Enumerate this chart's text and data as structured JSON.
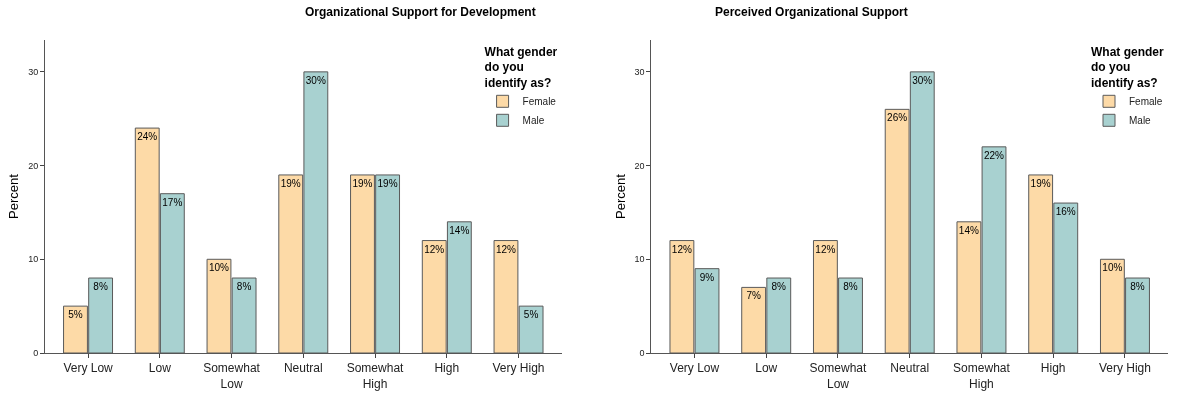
{
  "chart_data": [
    {
      "type": "bar",
      "title": "Organizational Support for Development",
      "ylabel": "Percent",
      "legend_title": "What gender\ndo you\nidentify as?",
      "legend": "top right",
      "categories": [
        "Very Low",
        "Low",
        "Somewhat\nLow",
        "Neutral",
        "Somewhat\nHigh",
        "High",
        "Very High"
      ],
      "ylim": [
        0,
        33.4
      ],
      "yticks": [
        0,
        10,
        20,
        30
      ],
      "series": [
        {
          "name": "Female",
          "color": "#fddaa7",
          "values": [
            5,
            24,
            10,
            19,
            19,
            12,
            12
          ],
          "value_labels": [
            "5%",
            "24%",
            "10%",
            "19%",
            "19%",
            "12%",
            "12%"
          ]
        },
        {
          "name": "Male",
          "color": "#a8d1d0",
          "values": [
            8,
            17,
            8,
            30,
            19,
            14,
            5
          ],
          "value_labels": [
            "8%",
            "17%",
            "8%",
            "30%",
            "19%",
            "14%",
            "5%"
          ]
        }
      ]
    },
    {
      "type": "bar",
      "title": "Perceived Organizational Support",
      "ylabel": "Percent",
      "legend_title": "What gender\ndo you\nidentify as?",
      "legend": "top right",
      "categories": [
        "Very Low",
        "Low",
        "Somewhat\nLow",
        "Neutral",
        "Somewhat\nHigh",
        "High",
        "Very High"
      ],
      "ylim": [
        0,
        33.4
      ],
      "yticks": [
        0,
        10,
        20,
        30
      ],
      "series": [
        {
          "name": "Female",
          "color": "#fddaa7",
          "values": [
            12,
            7,
            12,
            26,
            14,
            19,
            10
          ],
          "value_labels": [
            "12%",
            "7%",
            "12%",
            "26%",
            "14%",
            "19%",
            "10%"
          ]
        },
        {
          "name": "Male",
          "color": "#a8d1d0",
          "values": [
            9,
            8,
            8,
            30,
            22,
            16,
            8
          ],
          "value_labels": [
            "9%",
            "8%",
            "8%",
            "30%",
            "22%",
            "16%",
            "8%"
          ]
        }
      ]
    }
  ]
}
